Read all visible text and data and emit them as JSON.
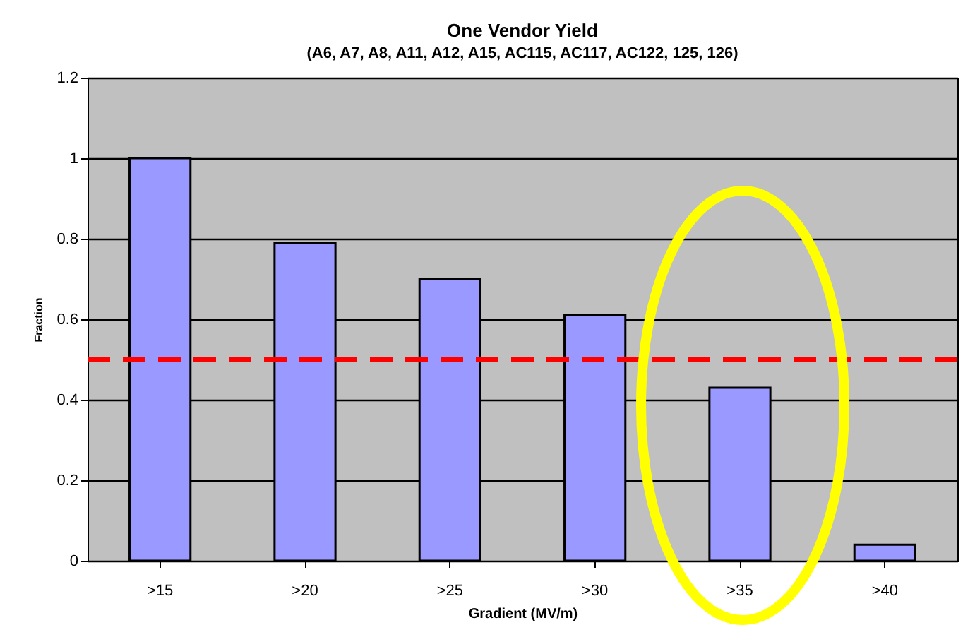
{
  "chart_data": {
    "type": "bar",
    "title": "One Vendor Yield",
    "subtitle": "(A6, A7, A8, A11, A12, A15, AC115, AC117, AC122, 125, 126)",
    "xlabel": "Gradient (MV/m)",
    "ylabel": "Fraction",
    "categories": [
      ">15",
      ">20",
      ">25",
      ">30",
      ">35",
      ">40"
    ],
    "values": [
      1.0,
      0.79,
      0.7,
      0.61,
      0.43,
      0.04
    ],
    "color": "#9999ff",
    "ylim": [
      0,
      1.2
    ],
    "yticks": [
      0,
      0.2,
      0.4,
      0.6,
      0.8,
      1,
      1.2
    ],
    "grid": "y",
    "ref_lines": [
      {
        "axis": "y",
        "value": 0.5,
        "color": "#ff0000",
        "line_style": "dashed"
      }
    ]
  }
}
